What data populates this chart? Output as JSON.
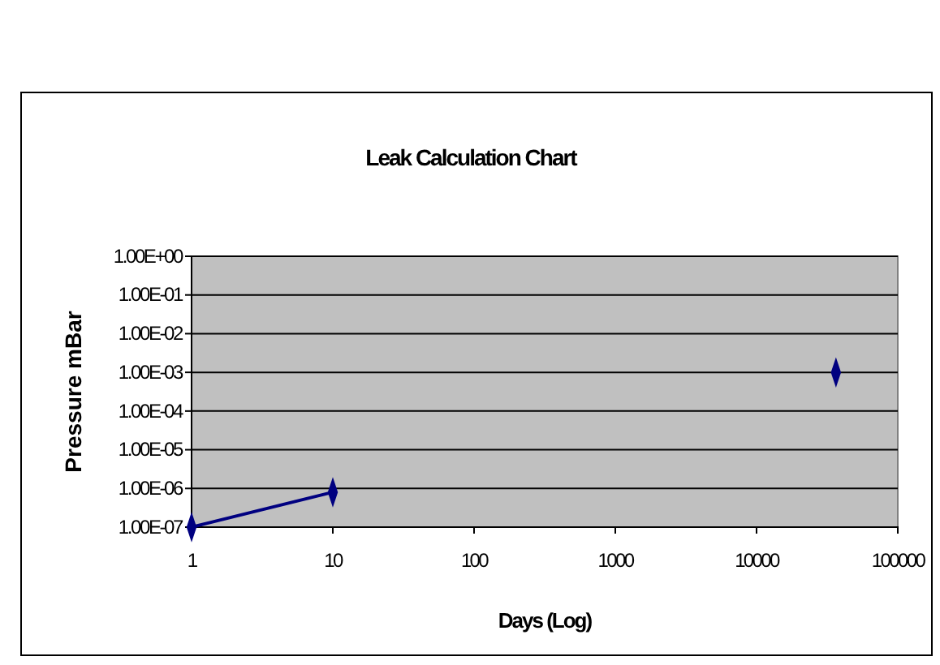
{
  "chart_data": {
    "type": "line",
    "title": "Leak Calculation Chart",
    "xlabel": "Days (Log)",
    "ylabel": "Pressure mBar",
    "log": "xy",
    "grid": "y",
    "marker": "diamond",
    "line_style": "solid",
    "xlim": [
      1,
      100000
    ],
    "xticks": [
      1,
      10,
      100,
      1000,
      10000,
      100000
    ],
    "ylim": [
      1e-07,
      1
    ],
    "yticks": [
      {
        "value": 1e-07,
        "label": "1.00E-07"
      },
      {
        "value": 1e-06,
        "label": "1.00E-06"
      },
      {
        "value": 1e-05,
        "label": "1.00E-05"
      },
      {
        "value": 0.0001,
        "label": "1.00E-04"
      },
      {
        "value": 0.001,
        "label": "1.00E-03"
      },
      {
        "value": 0.01,
        "label": "1.00E-02"
      },
      {
        "value": 0.1,
        "label": "1.00E-01"
      },
      {
        "value": 1,
        "label": "1.00E+00"
      }
    ],
    "series": [
      {
        "color": "#000080",
        "x": [
          1,
          10
        ],
        "values": [
          1e-07,
          8e-07
        ]
      },
      {
        "type": "scatter",
        "color": "#000080",
        "x": [
          36500
        ],
        "values": [
          0.001
        ]
      }
    ]
  }
}
